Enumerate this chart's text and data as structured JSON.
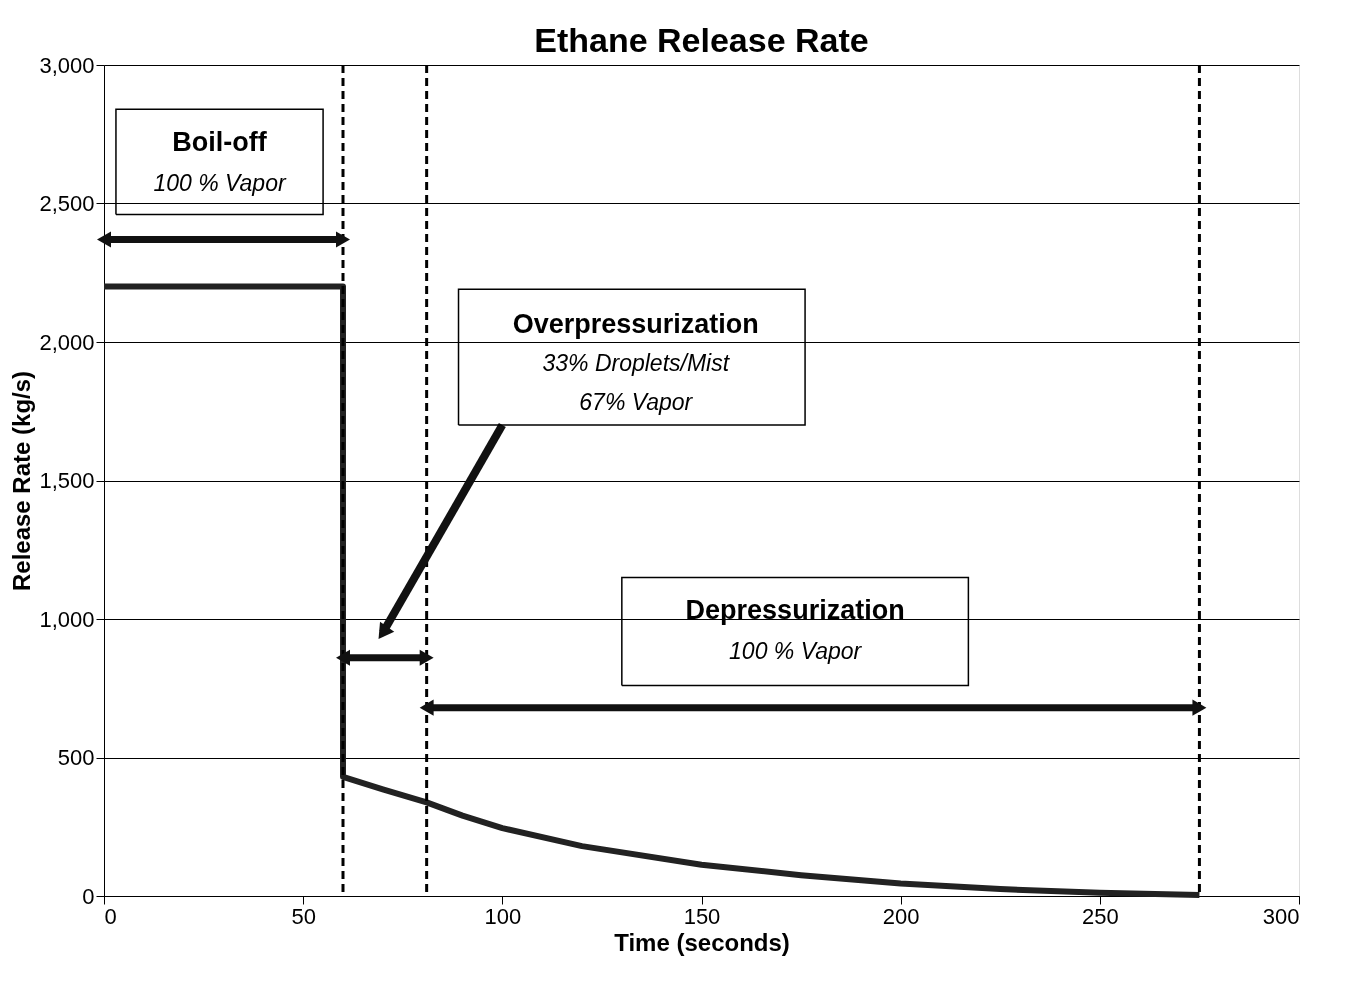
{
  "chart_data": {
    "type": "line",
    "title": "Ethane Release Rate",
    "xlabel": "Time (seconds)",
    "ylabel": "Release Rate (kg/s)",
    "series": [
      {
        "color": "#222222",
        "x": [
          0,
          60,
          60,
          70,
          81,
          90,
          100,
          120,
          150,
          175,
          200,
          225,
          250,
          275
        ],
        "values": [
          2200,
          2200,
          430,
          385,
          338,
          290,
          245,
          180,
          113,
          75,
          45,
          25,
          12,
          4
        ]
      }
    ],
    "xlim": [
      0,
      300
    ],
    "xticks": [
      0,
      50,
      100,
      150,
      200,
      250,
      300
    ],
    "ylim": [
      0,
      3000
    ],
    "yticks": [
      0,
      {
        "value": 500,
        "label": "500"
      },
      {
        "value": 1000,
        "label": "1,000"
      },
      {
        "value": 1500,
        "label": "1,500"
      },
      {
        "value": 2000,
        "label": "2,000"
      },
      {
        "value": 2500,
        "label": "2,500"
      },
      {
        "value": 3000,
        "label": "3,000"
      }
    ],
    "grid": "y",
    "line_style": "solid",
    "marker": "none",
    "ref_lines": [
      {
        "axis": "x",
        "value": 60,
        "color": "#000000",
        "line_style": "dashed"
      },
      {
        "axis": "x",
        "value": 81,
        "color": "#000000",
        "line_style": "dashed"
      },
      {
        "axis": "x",
        "value": 275,
        "color": "#000000",
        "line_style": "dashed"
      }
    ],
    "annotations": [
      "Boil-off",
      "100 % Vapor",
      "Overpressurization",
      "33% Droplets/Mist",
      "67% Vapor",
      "Depressurization",
      "100 % Vapor"
    ]
  }
}
